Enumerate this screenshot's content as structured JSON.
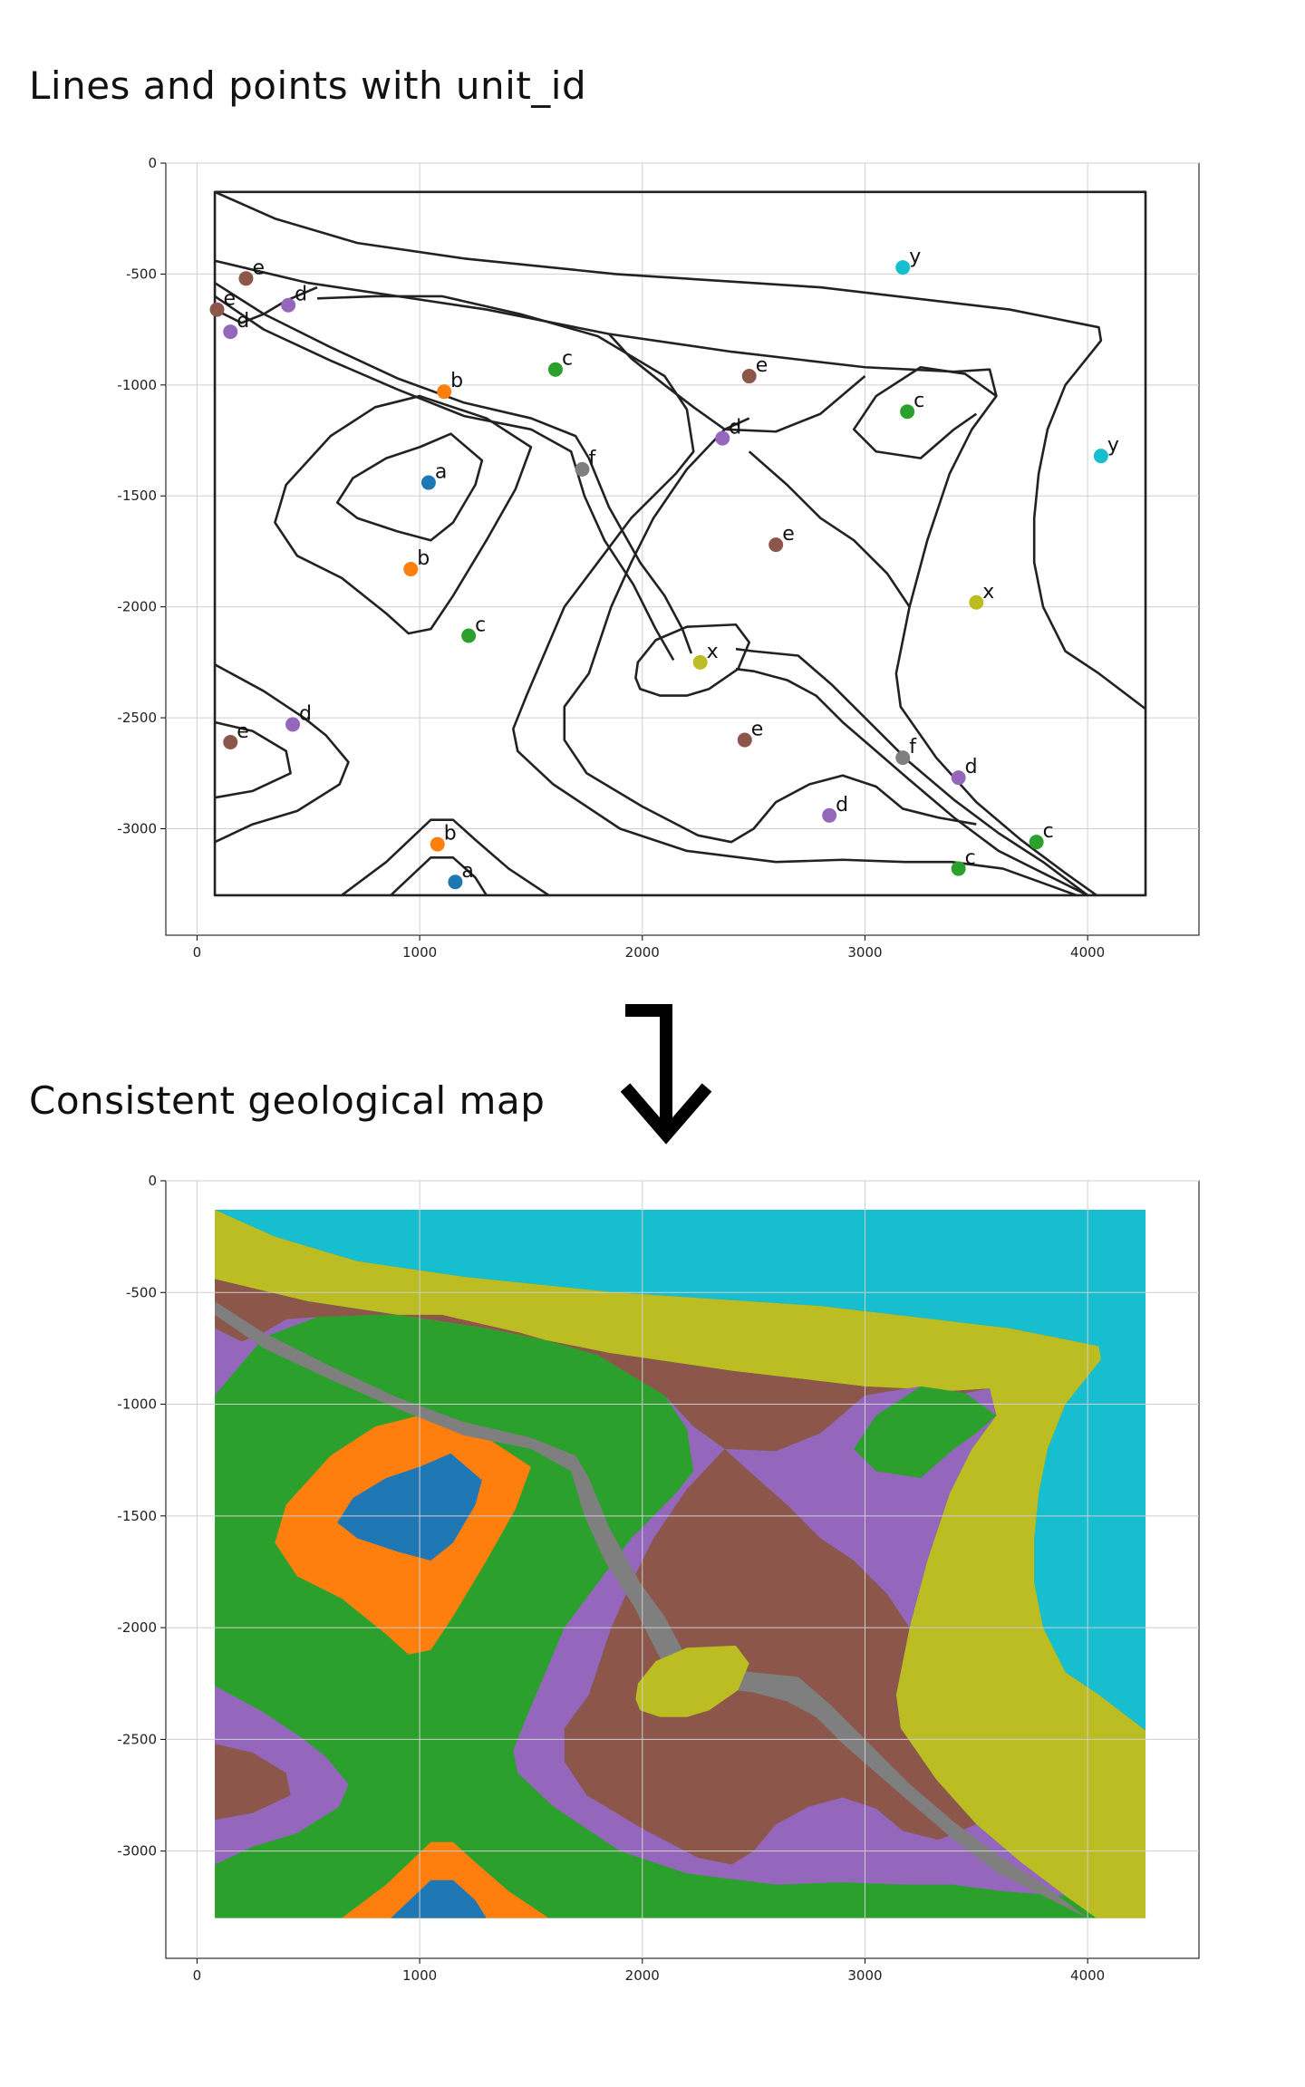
{
  "titles": {
    "top": "Lines and points with unit_id",
    "bottom": "Consistent geological map"
  },
  "colors": {
    "a": "#1f77b4",
    "b": "#ff7f0e",
    "c": "#2ca02c",
    "d": "#9467bd",
    "e": "#8c564b",
    "f": "#7f7f7f",
    "x": "#bcbd22",
    "y": "#17becf"
  },
  "arrow_icon": "arrow-down-turn-icon",
  "chart_data": [
    {
      "type": "scatter",
      "title": "Lines and points with unit_id",
      "xlim": [
        -140,
        4500
      ],
      "ylim": [
        -3480,
        0
      ],
      "xticks": [
        0,
        1000,
        2000,
        3000,
        4000
      ],
      "yticks": [
        0,
        -500,
        -1000,
        -1500,
        -2000,
        -2500,
        -3000
      ],
      "grid": true,
      "points": [
        {
          "x": 220,
          "y": -520,
          "id": "e"
        },
        {
          "x": 410,
          "y": -640,
          "id": "d"
        },
        {
          "x": 90,
          "y": -660,
          "id": "e"
        },
        {
          "x": 150,
          "y": -760,
          "id": "d"
        },
        {
          "x": 1610,
          "y": -930,
          "id": "c"
        },
        {
          "x": 1110,
          "y": -1030,
          "id": "b"
        },
        {
          "x": 1040,
          "y": -1440,
          "id": "a"
        },
        {
          "x": 960,
          "y": -1830,
          "id": "b"
        },
        {
          "x": 1220,
          "y": -2130,
          "id": "c"
        },
        {
          "x": 1730,
          "y": -1380,
          "id": "f"
        },
        {
          "x": 2480,
          "y": -960,
          "id": "e"
        },
        {
          "x": 2360,
          "y": -1240,
          "id": "d"
        },
        {
          "x": 3190,
          "y": -1120,
          "id": "c"
        },
        {
          "x": 3170,
          "y": -470,
          "id": "y"
        },
        {
          "x": 4060,
          "y": -1320,
          "id": "y"
        },
        {
          "x": 2600,
          "y": -1720,
          "id": "e"
        },
        {
          "x": 3500,
          "y": -1980,
          "id": "x"
        },
        {
          "x": 2260,
          "y": -2250,
          "id": "x"
        },
        {
          "x": 2460,
          "y": -2600,
          "id": "e"
        },
        {
          "x": 3170,
          "y": -2680,
          "id": "f"
        },
        {
          "x": 3420,
          "y": -2770,
          "id": "d"
        },
        {
          "x": 2840,
          "y": -2940,
          "id": "d"
        },
        {
          "x": 3770,
          "y": -3060,
          "id": "c"
        },
        {
          "x": 3420,
          "y": -3180,
          "id": "c"
        },
        {
          "x": 430,
          "y": -2530,
          "id": "d"
        },
        {
          "x": 150,
          "y": -2610,
          "id": "e"
        },
        {
          "x": 1080,
          "y": -3070,
          "id": "b"
        },
        {
          "x": 1160,
          "y": -3240,
          "id": "a"
        }
      ]
    },
    {
      "type": "heatmap",
      "title": "Consistent geological map",
      "xlim": [
        -140,
        4500
      ],
      "ylim": [
        -3480,
        0
      ],
      "xticks": [
        0,
        1000,
        2000,
        3000,
        4000
      ],
      "yticks": [
        0,
        -500,
        -1000,
        -1500,
        -2000,
        -2500,
        -3000
      ],
      "grid": true,
      "units": [
        "a",
        "b",
        "c",
        "d",
        "e",
        "f",
        "x",
        "y"
      ]
    }
  ]
}
